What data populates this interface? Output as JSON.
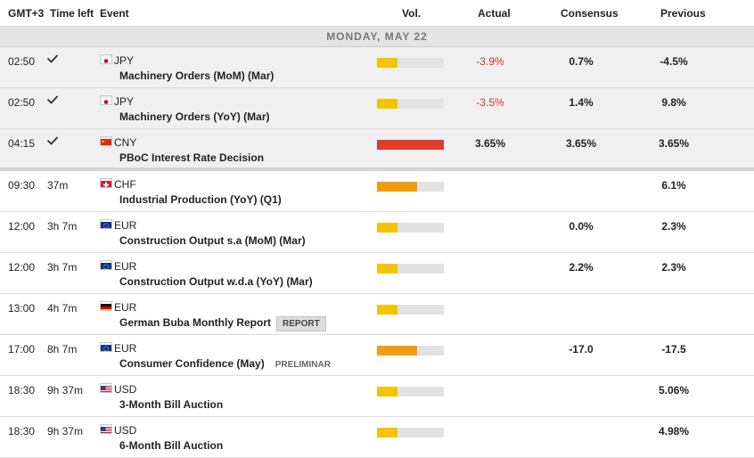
{
  "header": {
    "timezone": "GMT+3",
    "time_left": "Time left",
    "event": "Event",
    "vol": "Vol.",
    "actual": "Actual",
    "consensus": "Consensus",
    "previous": "Previous"
  },
  "day_label": "MONDAY, MAY 22",
  "colors": {
    "low": "#f5c400",
    "medium": "#f39c12",
    "high": "#e03a2f",
    "negative": "#d9302b"
  },
  "rows": [
    {
      "time": "02:50",
      "left": "",
      "status": "check-icon",
      "flag": "japan-flag-icon",
      "currency": "JPY",
      "event": "Machinery Orders (MoM) (Mar)",
      "tag": "",
      "volatility": 0.3,
      "vol_color": "#f5c400",
      "actual": "-3.9%",
      "consensus": "0.7%",
      "previous": "-4.5%"
    },
    {
      "time": "02:50",
      "left": "",
      "status": "check-icon",
      "flag": "japan-flag-icon",
      "currency": "JPY",
      "event": "Machinery Orders (YoY) (Mar)",
      "tag": "",
      "volatility": 0.3,
      "vol_color": "#f5c400",
      "actual": "-3.5%",
      "consensus": "1.4%",
      "previous": "9.8%"
    },
    {
      "time": "04:15",
      "left": "",
      "status": "check-icon",
      "flag": "china-flag-icon",
      "currency": "CNY",
      "event": "PBoC Interest Rate Decision",
      "tag": "",
      "volatility": 1.0,
      "vol_color": "#e03a2f",
      "actual": "3.65%",
      "consensus": "3.65%",
      "previous": "3.65%"
    },
    {
      "time": "09:30",
      "left": "37m",
      "status": "",
      "flag": "switzerland-flag-icon",
      "currency": "CHF",
      "event": "Industrial Production (YoY) (Q1)",
      "tag": "",
      "volatility": 0.6,
      "vol_color": "#f39c12",
      "actual": "",
      "consensus": "",
      "previous": "6.1%"
    },
    {
      "time": "12:00",
      "left": "3h 7m",
      "status": "",
      "flag": "eu-flag-icon",
      "currency": "EUR",
      "event": "Construction Output s.a (MoM) (Mar)",
      "tag": "",
      "volatility": 0.3,
      "vol_color": "#f5c400",
      "actual": "",
      "consensus": "0.0%",
      "previous": "2.3%"
    },
    {
      "time": "12:00",
      "left": "3h 7m",
      "status": "",
      "flag": "eu-flag-icon",
      "currency": "EUR",
      "event": "Construction Output w.d.a (YoY) (Mar)",
      "tag": "",
      "volatility": 0.3,
      "vol_color": "#f5c400",
      "actual": "",
      "consensus": "2.2%",
      "previous": "2.3%"
    },
    {
      "time": "13:00",
      "left": "4h 7m",
      "status": "",
      "flag": "germany-flag-icon",
      "currency": "EUR",
      "event": "German Buba Monthly Report",
      "tag": "REPORT",
      "volatility": 0.3,
      "vol_color": "#f5c400",
      "actual": "",
      "consensus": "",
      "previous": ""
    },
    {
      "time": "17:00",
      "left": "8h 7m",
      "status": "",
      "flag": "eu-flag-icon",
      "currency": "EUR",
      "event": "Consumer Confidence (May)",
      "tag": "PRELIMINAR",
      "volatility": 0.6,
      "vol_color": "#f39c12",
      "actual": "",
      "consensus": "-17.0",
      "previous": "-17.5"
    },
    {
      "time": "18:30",
      "left": "9h 37m",
      "status": "",
      "flag": "usa-flag-icon",
      "currency": "USD",
      "event": "3-Month Bill Auction",
      "tag": "",
      "volatility": 0.3,
      "vol_color": "#f5c400",
      "actual": "",
      "consensus": "",
      "previous": "5.06%"
    },
    {
      "time": "18:30",
      "left": "9h 37m",
      "status": "",
      "flag": "usa-flag-icon",
      "currency": "USD",
      "event": "6-Month Bill Auction",
      "tag": "",
      "volatility": 0.3,
      "vol_color": "#f5c400",
      "actual": "",
      "consensus": "",
      "previous": "4.98%"
    }
  ]
}
